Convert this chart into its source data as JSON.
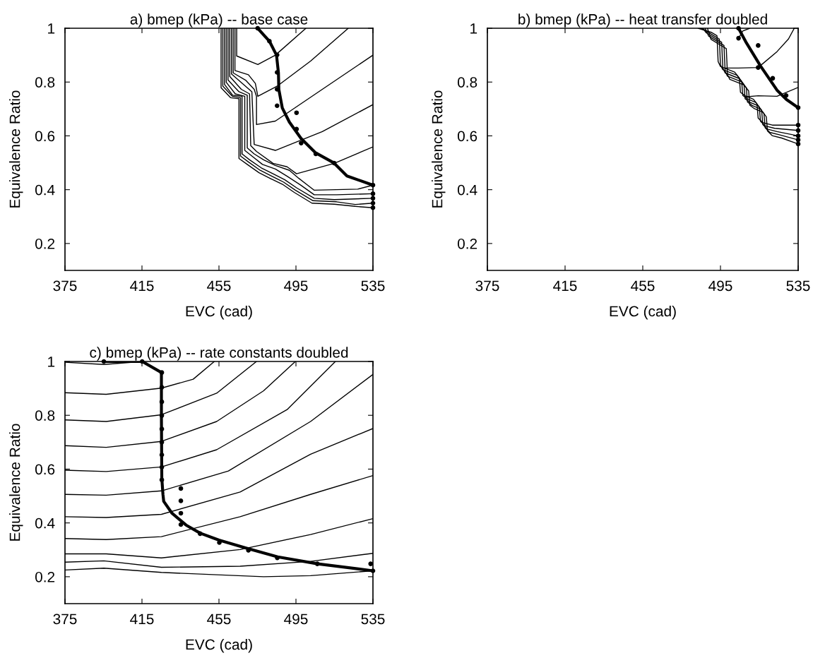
{
  "chart_data": [
    {
      "type": "line",
      "title": "a) bmep (kPa) -- base case",
      "xlabel": "EVC (cad)",
      "ylabel": "Equivalence Ratio",
      "xlim": [
        375,
        535
      ],
      "ylim": [
        0.1,
        1
      ],
      "xticks": [
        375,
        415,
        455,
        495,
        535
      ],
      "yticks": [
        0.2,
        0.4,
        0.6,
        0.8,
        1
      ],
      "grid": false,
      "legend": false,
      "series": [
        {
          "color": "#000000",
          "x": [
            464.2,
            464.2,
            475.2,
            484.3,
            500.2
          ],
          "values": [
            1,
            0.897,
            0.865,
            0.9,
            1
          ]
        },
        {
          "color": "#000000",
          "x": [
            463.3,
            463.3,
            470.3,
            473.9,
            475.2,
            485.5,
            502.6,
            522.2
          ],
          "values": [
            1,
            0.843,
            0.827,
            0.795,
            0.747,
            0.786,
            0.878,
            1
          ]
        },
        {
          "color": "#000000",
          "x": [
            462.4,
            462.4,
            469.0,
            473.3,
            474.5,
            474.5,
            484.3,
            508.7,
            535
          ],
          "values": [
            1,
            0.834,
            0.806,
            0.773,
            0.747,
            0.642,
            0.655,
            0.773,
            0.9
          ]
        },
        {
          "color": "#000000",
          "x": [
            461.5,
            461.5,
            467.8,
            472.1,
            472.7,
            473.3,
            484.3,
            508.7,
            535
          ],
          "values": [
            1,
            0.83,
            0.791,
            0.764,
            0.66,
            0.568,
            0.546,
            0.616,
            0.716
          ]
        },
        {
          "color": "#000000",
          "x": [
            460.6,
            460.6,
            466.6,
            470.9,
            471.5,
            474.5,
            483.1,
            490.4,
            495.3,
            514.9,
            535
          ],
          "values": [
            1,
            0.821,
            0.773,
            0.756,
            0.564,
            0.542,
            0.498,
            0.485,
            0.459,
            0.498,
            0.559
          ]
        },
        {
          "color": "#000000",
          "x": [
            459.7,
            459.7,
            465.4,
            469.7,
            469.7,
            473.3,
            478.2,
            484.3,
            491.6,
            496.5,
            504.5,
            527.1,
            535
          ],
          "values": [
            1,
            0.808,
            0.764,
            0.751,
            0.555,
            0.533,
            0.511,
            0.49,
            0.472,
            0.442,
            0.398,
            0.402,
            0.417
          ]
        },
        {
          "color": "#000000",
          "x": [
            458.8,
            458.8,
            463.5,
            468.4,
            468.4,
            472.1,
            477.6,
            484.3,
            490.4,
            497.7,
            504.5,
            516.1,
            535
          ],
          "values": [
            1,
            0.799,
            0.756,
            0.747,
            0.546,
            0.525,
            0.494,
            0.477,
            0.45,
            0.416,
            0.381,
            0.381,
            0.385
          ]
        },
        {
          "color": "#000000",
          "x": [
            457.9,
            457.9,
            462.1,
            467.0,
            467.0,
            470.9,
            477.0,
            483.1,
            489.2,
            495.3,
            504.5,
            514.9,
            535
          ],
          "values": [
            1,
            0.791,
            0.751,
            0.747,
            0.533,
            0.511,
            0.481,
            0.459,
            0.437,
            0.407,
            0.368,
            0.363,
            0.368
          ]
        },
        {
          "color": "#000000",
          "x": [
            457.0,
            457.0,
            462.0,
            466.2,
            466.2,
            470.3,
            476.4,
            482.5,
            488.6,
            494.7,
            503.9,
            516.1,
            525.8,
            535
          ],
          "values": [
            1,
            0.785,
            0.747,
            0.742,
            0.525,
            0.503,
            0.472,
            0.45,
            0.428,
            0.398,
            0.359,
            0.355,
            0.345,
            0.35
          ]
        },
        {
          "color": "#000000",
          "x": [
            456.1,
            456.1,
            461.0,
            465.4,
            465.4,
            469.7,
            475.8,
            481.9,
            488.0,
            494.1,
            503.3,
            514.9,
            525.8,
            535
          ],
          "values": [
            1,
            0.779,
            0.742,
            0.738,
            0.516,
            0.494,
            0.463,
            0.441,
            0.42,
            0.39,
            0.35,
            0.346,
            0.338,
            0.333
          ]
        },
        {
          "color": "#000000",
          "x": [
            475.1,
            481.2,
            484.9,
            485.9,
            486.1,
            487.9,
            491.6,
            497.7,
            505.0,
            514.8,
            521.5,
            535
          ],
          "values": [
            1,
            0.952,
            0.9,
            0.834,
            0.773,
            0.704,
            0.651,
            0.59,
            0.538,
            0.499,
            0.451,
            0.417
          ]
        },
        {
          "type": "scatter",
          "color": "#000000",
          "x": [
            475.1,
            481.2,
            485.2,
            485.2,
            485.2,
            485.2,
            495.3,
            495.3,
            497.7,
            505.3,
            514.8,
            535,
            535,
            535,
            535,
            535
          ],
          "values": [
            1,
            0.952,
            0.901,
            0.836,
            0.773,
            0.712,
            0.686,
            0.625,
            0.573,
            0.533,
            0.499,
            0.417,
            0.385,
            0.368,
            0.35,
            0.333
          ]
        }
      ]
    },
    {
      "type": "line",
      "title": "b) bmep (kPa) -- heat transfer doubled",
      "xlabel": "EVC (cad)",
      "ylabel": "Equivalence Ratio",
      "xlim": [
        375,
        535
      ],
      "ylim": [
        0.1,
        1
      ],
      "xticks": [
        375,
        415,
        455,
        495,
        535
      ],
      "yticks": [
        0.2,
        0.4,
        0.6,
        0.8,
        1
      ],
      "grid": false,
      "legend": false,
      "series": [
        {
          "color": "#000000",
          "x": [
            483.5,
            490.2,
            493.2,
            493.8,
            495.0,
            502.3,
            504.7,
            505.3,
            507.7,
            512.0,
            513.8,
            514.4,
            516.8,
            521.7,
            535
          ],
          "values": [
            1,
            0.985,
            0.972,
            0.876,
            0.858,
            0.837,
            0.815,
            0.762,
            0.749,
            0.736,
            0.719,
            0.666,
            0.649,
            0.64,
            0.64
          ]
        },
        {
          "color": "#000000",
          "x": [
            484.7,
            486.5,
            491.4,
            494.4,
            495.0,
            496.2,
            503.5,
            505.9,
            506.5,
            508.9,
            513.2,
            515.0,
            515.6,
            518.0,
            522.9,
            535
          ],
          "values": [
            1,
            0.995,
            0.973,
            0.96,
            0.864,
            0.846,
            0.825,
            0.803,
            0.75,
            0.737,
            0.724,
            0.707,
            0.654,
            0.637,
            0.628,
            0.62
          ]
        },
        {
          "color": "#000000",
          "x": [
            485.9,
            487.7,
            492.6,
            495.6,
            496.2,
            497.4,
            504.7,
            507.1,
            507.7,
            510.1,
            514.4,
            516.2,
            516.8,
            519.2,
            524.1,
            535
          ],
          "values": [
            1,
            0.983,
            0.961,
            0.948,
            0.852,
            0.834,
            0.813,
            0.791,
            0.738,
            0.725,
            0.712,
            0.695,
            0.642,
            0.625,
            0.616,
            0.6
          ]
        },
        {
          "color": "#000000",
          "x": [
            487.1,
            488.9,
            493.8,
            496.8,
            497.4,
            498.6,
            505.9,
            508.3,
            508.9,
            511.3,
            515.6,
            517.4,
            518.0,
            520.4,
            525.3,
            535
          ],
          "values": [
            1,
            0.971,
            0.949,
            0.936,
            0.84,
            0.822,
            0.801,
            0.779,
            0.726,
            0.713,
            0.7,
            0.683,
            0.63,
            0.613,
            0.604,
            0.585
          ]
        },
        {
          "color": "#000000",
          "x": [
            488.3,
            490.1,
            495.0,
            498.0,
            498.6,
            499.8,
            507.1,
            509.5,
            510.1,
            512.5,
            516.8,
            518.6,
            519.2,
            521.6,
            526.5,
            535
          ],
          "values": [
            1,
            0.959,
            0.937,
            0.924,
            0.828,
            0.81,
            0.789,
            0.767,
            0.714,
            0.701,
            0.688,
            0.671,
            0.618,
            0.601,
            0.592,
            0.57
          ]
        },
        {
          "color": "#000000",
          "x": [
            504.3,
            506.5,
            510.1
          ],
          "values": [
            0.963,
            0.99,
            1
          ]
        },
        {
          "color": "#000000",
          "x": [
            497.4,
            504.1,
            514.4,
            524.1,
            530,
            533
          ],
          "values": [
            0.852,
            0.852,
            0.854,
            0.913,
            0.96,
            1
          ]
        },
        {
          "color": "#000000",
          "x": [
            507.7,
            514.4,
            524.1,
            535
          ],
          "values": [
            0.745,
            0.749,
            0.747,
            0.78
          ]
        },
        {
          "color": "#000000",
          "x": [
            504.3,
            508,
            515.6,
            524.1,
            529,
            535
          ],
          "values": [
            1,
            0.95,
            0.86,
            0.77,
            0.735,
            0.705
          ]
        },
        {
          "type": "scatter",
          "color": "#000000",
          "x": [
            504.3,
            504.3,
            514.4,
            514.4,
            521.9,
            528.8,
            535,
            535,
            535,
            535,
            535,
            535
          ],
          "values": [
            1,
            0.963,
            0.936,
            0.854,
            0.814,
            0.75,
            0.705,
            0.64,
            0.62,
            0.6,
            0.585,
            0.57
          ]
        }
      ]
    },
    {
      "type": "line",
      "title": "c) bmep (kPa) -- rate constants doubled",
      "xlabel": "EVC (cad)",
      "ylabel": "Equivalence Ratio",
      "xlim": [
        375,
        535
      ],
      "ylim": [
        0.1,
        1
      ],
      "xticks": [
        375,
        415,
        455,
        495,
        535
      ],
      "yticks": [
        0.2,
        0.4,
        0.6,
        0.8,
        1
      ],
      "grid": false,
      "legend": false,
      "series": [
        {
          "color": "#000000",
          "x": [
            375,
            395.2,
            415.1
          ],
          "values": [
            0.997,
            0.989,
            1
          ]
        },
        {
          "color": "#000000",
          "x": [
            375,
            396.4,
            425.1,
            441.6,
            452.6
          ],
          "values": [
            0.884,
            0.878,
            0.901,
            0.934,
            1
          ]
        },
        {
          "color": "#000000",
          "x": [
            375,
            396.4,
            425.1,
            453.8,
            474.5
          ],
          "values": [
            0.783,
            0.777,
            0.802,
            0.882,
            1
          ]
        },
        {
          "color": "#000000",
          "x": [
            375,
            396.4,
            425.1,
            453.8,
            478.2,
            494.7
          ],
          "values": [
            0.687,
            0.681,
            0.703,
            0.777,
            0.891,
            1
          ]
        },
        {
          "color": "#000000",
          "x": [
            375,
            396.4,
            425.1,
            453.8,
            490.4,
            515.5
          ],
          "values": [
            0.596,
            0.591,
            0.608,
            0.672,
            0.821,
            1
          ]
        },
        {
          "color": "#000000",
          "x": [
            375,
            396.4,
            425.1,
            459.9,
            502.6,
            535
          ],
          "values": [
            0.506,
            0.503,
            0.519,
            0.593,
            0.777,
            0.952
          ]
        },
        {
          "color": "#000000",
          "x": [
            375,
            396.4,
            425.1,
            466.0,
            502.6,
            535
          ],
          "values": [
            0.423,
            0.42,
            0.432,
            0.515,
            0.655,
            0.751
          ]
        },
        {
          "color": "#000000",
          "x": [
            375,
            396.4,
            425.1,
            466.0,
            502.6,
            535
          ],
          "values": [
            0.342,
            0.338,
            0.349,
            0.423,
            0.506,
            0.576
          ]
        },
        {
          "color": "#000000",
          "x": [
            375,
            396.4,
            425.1,
            466.0,
            502.6,
            535
          ],
          "values": [
            0.285,
            0.285,
            0.27,
            0.301,
            0.357,
            0.416
          ]
        },
        {
          "color": "#000000",
          "x": [
            375,
            395.2,
            425.1,
            466.0,
            502.6,
            535
          ],
          "values": [
            0.254,
            0.259,
            0.235,
            0.239,
            0.257,
            0.287
          ]
        },
        {
          "color": "#000000",
          "x": [
            375,
            395.2,
            425.1,
            478.2,
            502.6,
            535
          ],
          "values": [
            0.225,
            0.232,
            0.216,
            0.2,
            0.204,
            0.222
          ]
        },
        {
          "color": "#000000",
          "x": [
            395.2,
            415.1,
            425.1,
            425.1,
            425.3,
            425.9,
            426.3,
            430.6,
            437.9,
            445.2,
            455.0,
            469.7,
            485.5,
            506.3,
            535
          ],
          "values": [
            1,
            1,
            0.959,
            0.795,
            0.567,
            0.506,
            0.48,
            0.436,
            0.392,
            0.362,
            0.336,
            0.305,
            0.274,
            0.248,
            0.222
          ]
        },
        {
          "type": "scatter",
          "color": "#000000",
          "x": [
            395.2,
            415.1,
            425.3,
            425.3,
            425.3,
            425.3,
            425.3,
            425.3,
            425.3,
            425.3,
            425.3,
            435.2,
            435.2,
            435.2,
            435.2,
            445.2,
            455.2,
            470.3,
            485.3,
            506.1,
            533.8,
            535
          ],
          "values": [
            1,
            1,
            0.959,
            0.904,
            0.85,
            0.799,
            0.749,
            0.7,
            0.653,
            0.607,
            0.56,
            0.528,
            0.482,
            0.436,
            0.394,
            0.36,
            0.327,
            0.298,
            0.27,
            0.248,
            0.248,
            0.222
          ]
        }
      ]
    }
  ]
}
